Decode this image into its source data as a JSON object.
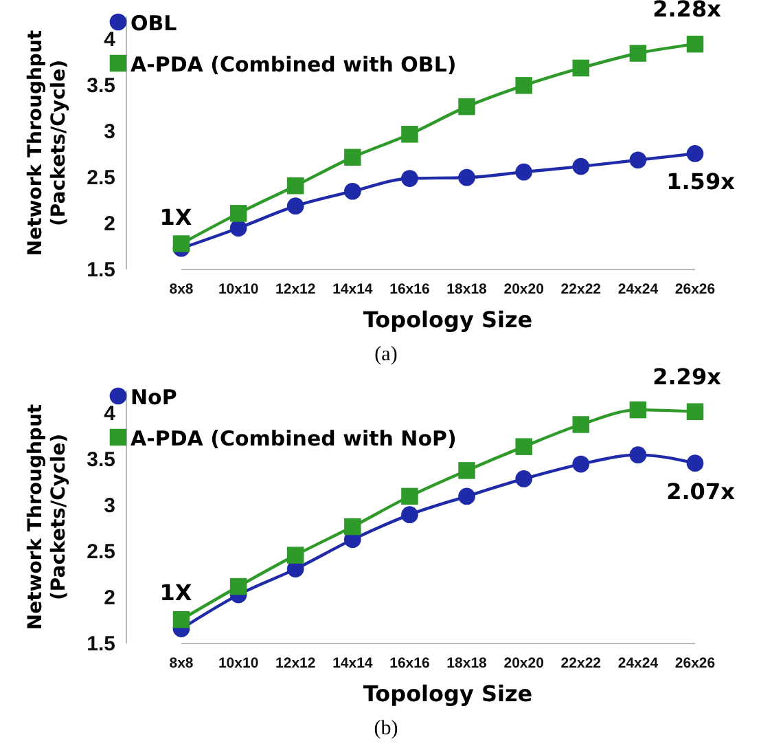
{
  "chart_data": [
    {
      "type": "line",
      "xlabel": "Topology Size",
      "ylabel": "Network Throughput\n(Packets/Cycle)",
      "categories": [
        "8x8",
        "10x10",
        "12x12",
        "14x14",
        "16x16",
        "18x18",
        "20x20",
        "22x22",
        "24x24",
        "26x26"
      ],
      "series": [
        {
          "name": "OBL",
          "color": "#1f2aa8",
          "marker": "circle",
          "values": [
            1.73,
            1.95,
            2.19,
            2.35,
            2.49,
            2.5,
            2.56,
            2.62,
            2.69,
            2.76
          ]
        },
        {
          "name": "A-PDA (Combined with OBL)",
          "color": "#2e9a2a",
          "marker": "square",
          "values": [
            1.78,
            2.11,
            2.41,
            2.72,
            2.97,
            3.27,
            3.5,
            3.69,
            3.85,
            3.95
          ]
        }
      ],
      "ylim": [
        1.5,
        4.25
      ],
      "yticks": [
        1.5,
        2,
        2.5,
        3,
        3.5,
        4
      ],
      "grid": false,
      "legend": "top left",
      "annotations": [
        {
          "text": "1X",
          "x": "8x8",
          "y": 1.78
        },
        {
          "text": "2.28x",
          "x": "26x26",
          "y": 3.95
        },
        {
          "text": "1.59x",
          "x": "26x26",
          "y": 2.76
        },
        "(a)"
      ]
    },
    {
      "type": "line",
      "xlabel": "Topology Size",
      "ylabel": "Network Throughput\n(Packets/Cycle)",
      "categories": [
        "8x8",
        "10x10",
        "12x12",
        "14x14",
        "16x16",
        "18x18",
        "20x20",
        "22x22",
        "24x24",
        "26x26"
      ],
      "series": [
        {
          "name": "NoP",
          "color": "#1f2aa8",
          "marker": "circle",
          "values": [
            1.66,
            2.03,
            2.31,
            2.63,
            2.9,
            3.1,
            3.29,
            3.45,
            3.55,
            3.46
          ]
        },
        {
          "name": "A-PDA (Combined with NoP)",
          "color": "#2e9a2a",
          "marker": "square",
          "values": [
            1.76,
            2.12,
            2.46,
            2.77,
            3.1,
            3.38,
            3.64,
            3.88,
            4.04,
            4.02
          ]
        }
      ],
      "ylim": [
        1.5,
        4.25
      ],
      "yticks": [
        1.5,
        2,
        2.5,
        3,
        3.5,
        4
      ],
      "grid": false,
      "legend": "top left",
      "annotations": [
        {
          "text": "1X",
          "x": "8x8",
          "y": 1.76
        },
        {
          "text": "2.29x",
          "x": "26x26",
          "y": 4.02
        },
        {
          "text": "2.07x",
          "x": "26x26",
          "y": 3.46
        },
        "(b)"
      ]
    }
  ]
}
